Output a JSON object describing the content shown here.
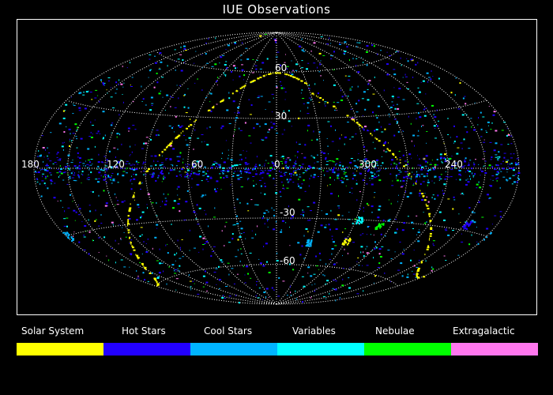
{
  "title": "IUE Observations",
  "grid": {
    "longitude_labels": [
      "180",
      "120",
      "60",
      "0",
      "300",
      "240"
    ],
    "latitude_labels": [
      "60",
      "30",
      "-30",
      "-60"
    ]
  },
  "legend": [
    {
      "label": "Solar System",
      "color": "#ffff00"
    },
    {
      "label": "Hot Stars",
      "color": "#2200ff"
    },
    {
      "label": "Cool Stars",
      "color": "#00b4ff"
    },
    {
      "label": "Variables",
      "color": "#00ffff"
    },
    {
      "label": "Nebulae",
      "color": "#00ff00"
    },
    {
      "label": "Extragalactic",
      "color": "#ff77ee"
    }
  ]
}
